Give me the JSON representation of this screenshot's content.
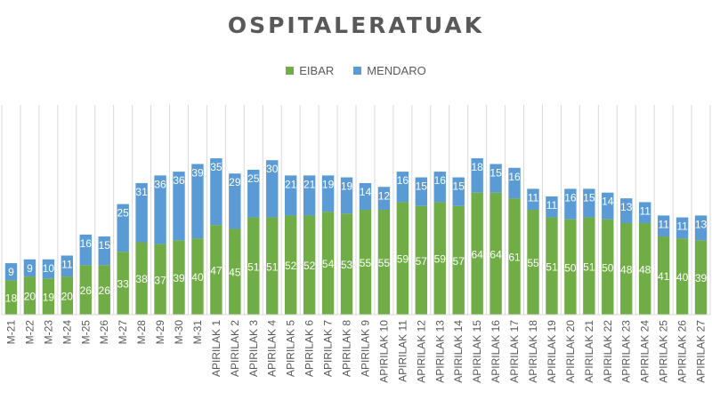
{
  "colors": {
    "eibar": "#70ad47",
    "mendaro": "#5b9bd5",
    "grid": "#d9d9d9",
    "text": "#595959"
  },
  "chart_data": {
    "type": "bar",
    "stacked": true,
    "title": "OSPITALERATUAK",
    "legend_position": "top",
    "xlabel": "",
    "ylabel": "",
    "ylim": [
      0,
      110
    ],
    "categories": [
      "M-21",
      "M-22",
      "M-23",
      "M-24",
      "M-25",
      "M-26",
      "M-27",
      "M-28",
      "M-29",
      "M-30",
      "M-31",
      "APIRILAK 1",
      "APIRILAK 2",
      "APIRILAK 3",
      "APIRILAK 4",
      "APIRILAK 5",
      "APIRILAK 6",
      "APIRILAK 7",
      "APIRILAK 8",
      "APIRILAK 9",
      "APIRILAK 10",
      "APIRILAK 11",
      "APIRILAK 12",
      "APIRILAK 13",
      "APIRILAK 14",
      "APIRILAK 15",
      "APIRILAK 16",
      "APIRILAK 17",
      "APIRILAK 18",
      "APIRILAK 19",
      "APIRILAK 20",
      "APIRILAK 21",
      "APIRILAK 22",
      "APIRILAK 23",
      "APIRILAK 24",
      "APIRILAK 25",
      "APIRILAK 26",
      "APIRILAK 27"
    ],
    "series": [
      {
        "name": "EIBAR",
        "values": [
          18,
          20,
          19,
          20,
          26,
          26,
          33,
          38,
          37,
          39,
          40,
          47,
          45,
          51,
          51,
          52,
          52,
          54,
          53,
          55,
          55,
          59,
          57,
          59,
          57,
          64,
          64,
          61,
          55,
          51,
          50,
          51,
          50,
          48,
          48,
          41,
          40,
          39
        ]
      },
      {
        "name": "MENDARO",
        "values": [
          9,
          9,
          10,
          11,
          16,
          15,
          25,
          31,
          36,
          36,
          39,
          35,
          29,
          25,
          30,
          21,
          21,
          19,
          19,
          14,
          12,
          16,
          15,
          16,
          15,
          18,
          15,
          16,
          11,
          11,
          16,
          15,
          14,
          13,
          11,
          11,
          11,
          13
        ]
      }
    ]
  }
}
